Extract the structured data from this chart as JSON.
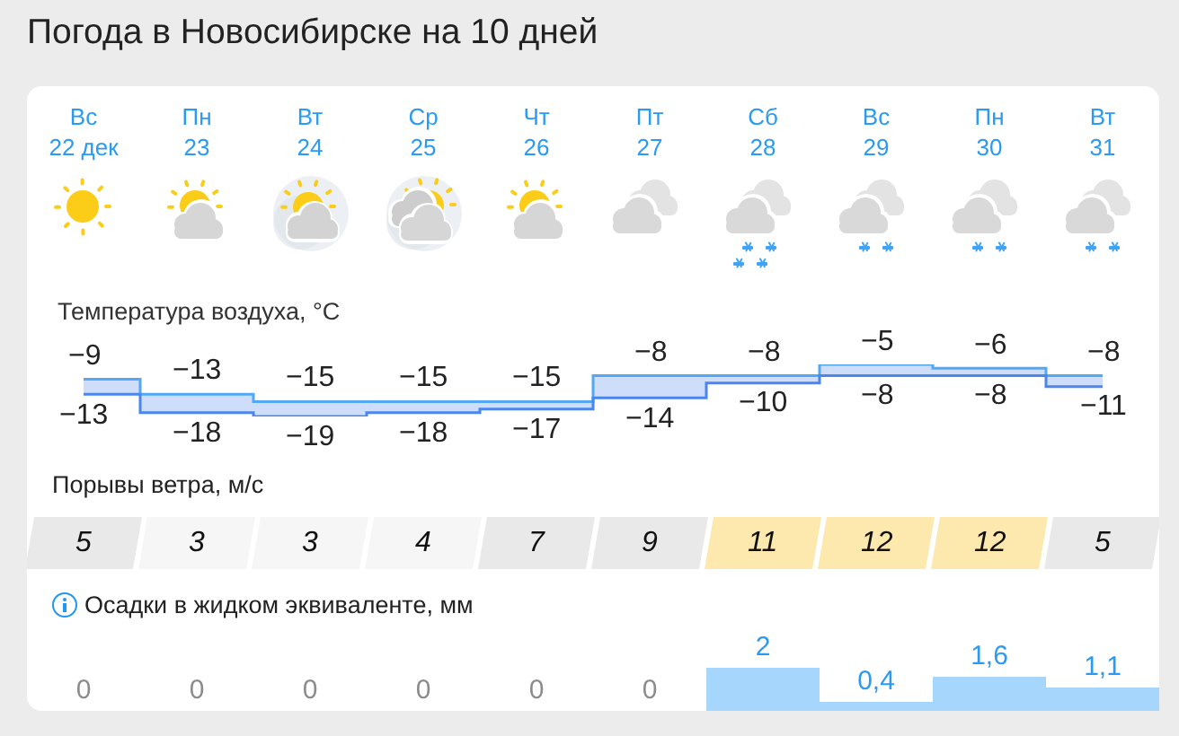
{
  "chart_data": [
    {
      "type": "step",
      "title": "Погода в Новосибирске на 10 дней",
      "subtitle": "Температура воздуха, °C",
      "categories": [
        "Вс\n22 дек",
        "Пн\n23",
        "Вт\n24",
        "Ср\n25",
        "Чт\n26",
        "Пт\n27",
        "Сб\n28",
        "Вс\n29",
        "Пн\n30",
        "Вт\n31"
      ],
      "series": [
        {
          "color": "#52a8f5",
          "values": [
            -9,
            -13,
            -15,
            -15,
            -15,
            -8,
            -8,
            -5,
            -6,
            -8
          ]
        },
        {
          "color": "#4b86ee",
          "values": [
            -13,
            -18,
            -19,
            -18,
            -17,
            -14,
            -10,
            -8,
            -8,
            -11
          ]
        }
      ],
      "data_labels": true,
      "tick_labels": "x"
    },
    {
      "type": "heatmap",
      "title": "Порывы ветра, м/с",
      "categories": [
        null,
        null,
        null,
        null,
        null,
        null,
        null,
        null,
        null,
        null
      ],
      "y_categories": [
        null
      ],
      "cells": [
        [
          5,
          3,
          3,
          4,
          7,
          9,
          11,
          12,
          12,
          5
        ]
      ],
      "data_labels": true,
      "tick_labels": false
    },
    {
      "type": "bar",
      "title": "Осадки в жидком эквиваленте, мм",
      "categories": [
        null,
        null,
        null,
        null,
        null,
        null,
        null,
        null,
        null,
        null
      ],
      "values": [
        0,
        0,
        0,
        0,
        0,
        0,
        2,
        0.4,
        1.6,
        1.1
      ],
      "value_labels": [
        "0",
        "0",
        "0",
        "0",
        "0",
        "0",
        "2",
        "0,4",
        "1,6",
        "1,1"
      ],
      "color": "#a6d6fb",
      "tick_labels": false
    }
  ]
}
